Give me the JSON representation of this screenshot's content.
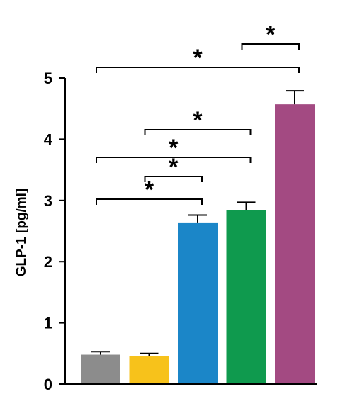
{
  "chart_data": {
    "type": "bar",
    "ylabel": "GLP-1 [pg/ml]",
    "ylim": [
      0,
      5
    ],
    "yticks": [
      "0",
      "1",
      "2",
      "3",
      "4",
      "5"
    ],
    "categories": [
      "",
      "",
      "",
      "",
      ""
    ],
    "values": [
      0.48,
      0.46,
      2.64,
      2.84,
      4.57
    ],
    "errors": [
      0.05,
      0.04,
      0.12,
      0.13,
      0.22
    ],
    "colors": [
      "#8c8c8c",
      "#f7c21b",
      "#1b86c8",
      "#0f9a4e",
      "#a34a82"
    ],
    "grid": false,
    "significance": [
      {
        "from": 0,
        "to": 4,
        "label": "*"
      },
      {
        "from": 3,
        "to": 4,
        "label": "*"
      },
      {
        "from": 1,
        "to": 3,
        "label": "*"
      },
      {
        "from": 0,
        "to": 3,
        "label": "*"
      },
      {
        "from": 1,
        "to": 2,
        "label": "*"
      },
      {
        "from": 0,
        "to": 2,
        "label": "*"
      }
    ]
  }
}
